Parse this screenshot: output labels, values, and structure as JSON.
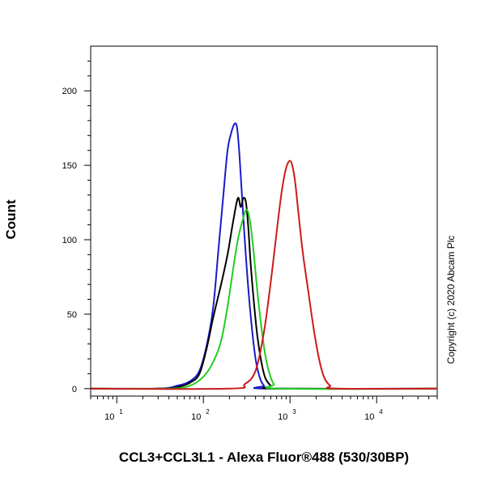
{
  "chart_data": {
    "type": "line",
    "title": "",
    "xlabel": "CCL3+CCL3L1 - Alexa Fluor®488 (530/30BP)",
    "ylabel": "Count",
    "x_scale": "log",
    "xlim": [
      5,
      50000
    ],
    "ylim": [
      -5,
      230
    ],
    "x_ticks": [
      {
        "base": "10",
        "exp": "1"
      },
      {
        "base": "10",
        "exp": "2"
      },
      {
        "base": "10",
        "exp": "3"
      },
      {
        "base": "10",
        "exp": "4"
      }
    ],
    "y_ticks": [
      "0",
      "50",
      "100",
      "150",
      "200"
    ],
    "grid": false,
    "legend": "none",
    "annotations": [
      "Copyright (c) 2020 Abcam Plc"
    ],
    "series": [
      {
        "color": "#1a1acc",
        "x": [
          5,
          30,
          50,
          70,
          90,
          110,
          130,
          150,
          170,
          190,
          210,
          230,
          245,
          260,
          280,
          310,
          350,
          400,
          450,
          500,
          550,
          50000
        ],
        "y": [
          0,
          0,
          2,
          5,
          12,
          30,
          55,
          95,
          130,
          160,
          172,
          178,
          175,
          158,
          128,
          88,
          50,
          20,
          7,
          2,
          0,
          0
        ]
      },
      {
        "color": "#000000",
        "x": [
          5,
          30,
          50,
          70,
          90,
          110,
          130,
          160,
          190,
          220,
          250,
          270,
          290,
          310,
          330,
          350,
          380,
          420,
          470,
          520,
          600,
          700,
          50000
        ],
        "y": [
          0,
          0,
          1,
          4,
          10,
          28,
          48,
          70,
          90,
          112,
          128,
          122,
          128,
          125,
          108,
          85,
          60,
          35,
          17,
          7,
          2,
          0,
          0
        ]
      },
      {
        "color": "#22cc22",
        "x": [
          5,
          40,
          70,
          100,
          130,
          160,
          190,
          220,
          250,
          280,
          310,
          330,
          350,
          380,
          420,
          470,
          520,
          580,
          650,
          750,
          50000
        ],
        "y": [
          0,
          0,
          2,
          8,
          18,
          32,
          55,
          80,
          100,
          112,
          120,
          118,
          110,
          92,
          65,
          40,
          22,
          10,
          3,
          0,
          0
        ]
      },
      {
        "color": "#cc1a1a",
        "x": [
          5,
          200,
          300,
          400,
          500,
          600,
          700,
          800,
          900,
          1000,
          1080,
          1150,
          1250,
          1400,
          1600,
          1900,
          2200,
          2500,
          2900,
          3400,
          50000
        ],
        "y": [
          0,
          0,
          3,
          12,
          38,
          72,
          105,
          132,
          148,
          153,
          148,
          138,
          118,
          92,
          68,
          38,
          18,
          7,
          2,
          0,
          0
        ]
      }
    ]
  }
}
